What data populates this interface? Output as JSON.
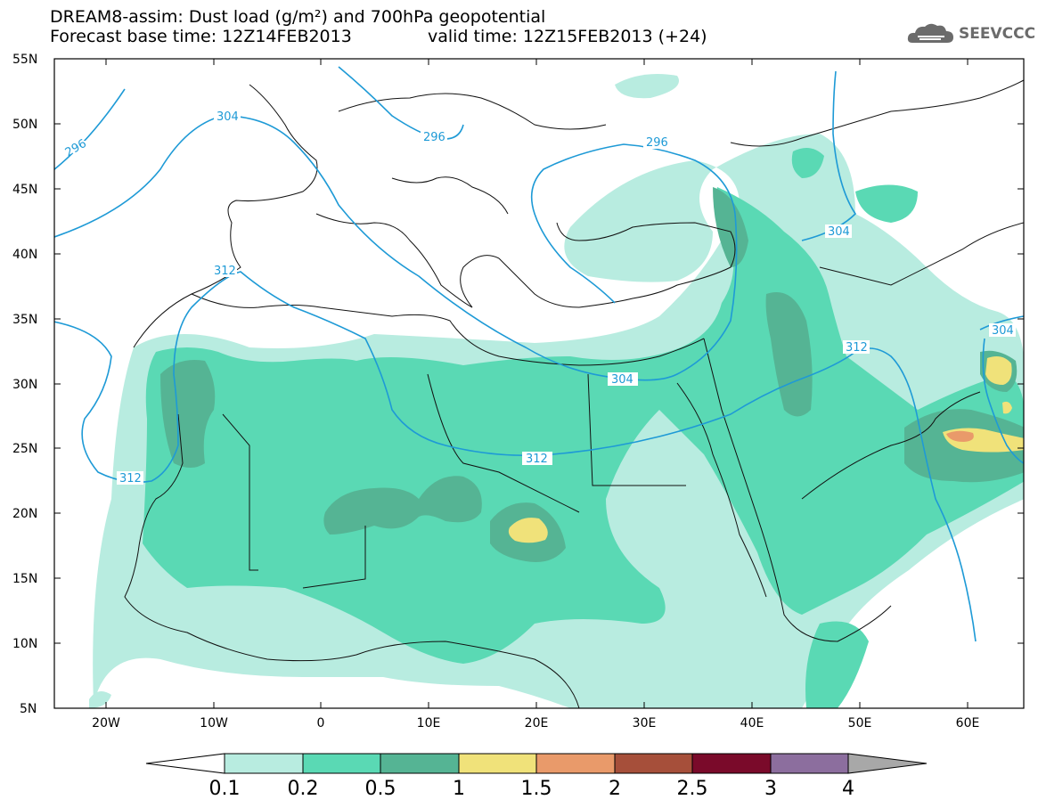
{
  "header": {
    "line1": "DREAM8-assim: Dust load (g/m²) and 700hPa geopotential",
    "line2": "Forecast base time: 12Z14FEB2013",
    "valid": "valid time: 12Z15FEB2013 (+24)",
    "logo": "SEEVCCC"
  },
  "map": {
    "lat_labels": [
      "55N",
      "50N",
      "45N",
      "40N",
      "35N",
      "30N",
      "25N",
      "20N",
      "15N",
      "10N",
      "5N"
    ],
    "lon_labels": [
      "20W",
      "10W",
      "0",
      "10E",
      "20E",
      "30E",
      "40E",
      "50E",
      "60E"
    ],
    "contour_labels": [
      "296",
      "304",
      "312",
      "296",
      "296",
      "304",
      "312",
      "304",
      "312",
      "312",
      "304"
    ]
  },
  "colorbar": {
    "labels": [
      "0.1",
      "0.2",
      "0.5",
      "1",
      "1.5",
      "2",
      "2.5",
      "3",
      "4"
    ],
    "colors": [
      "#b8ece0",
      "#5ad9b4",
      "#55b494",
      "#f0e27a",
      "#e99a6a",
      "#a64f3a",
      "#7a0a2a",
      "#8c6e9e"
    ],
    "under_color": "#ffffff",
    "over_color": "#a8a8a8"
  }
}
